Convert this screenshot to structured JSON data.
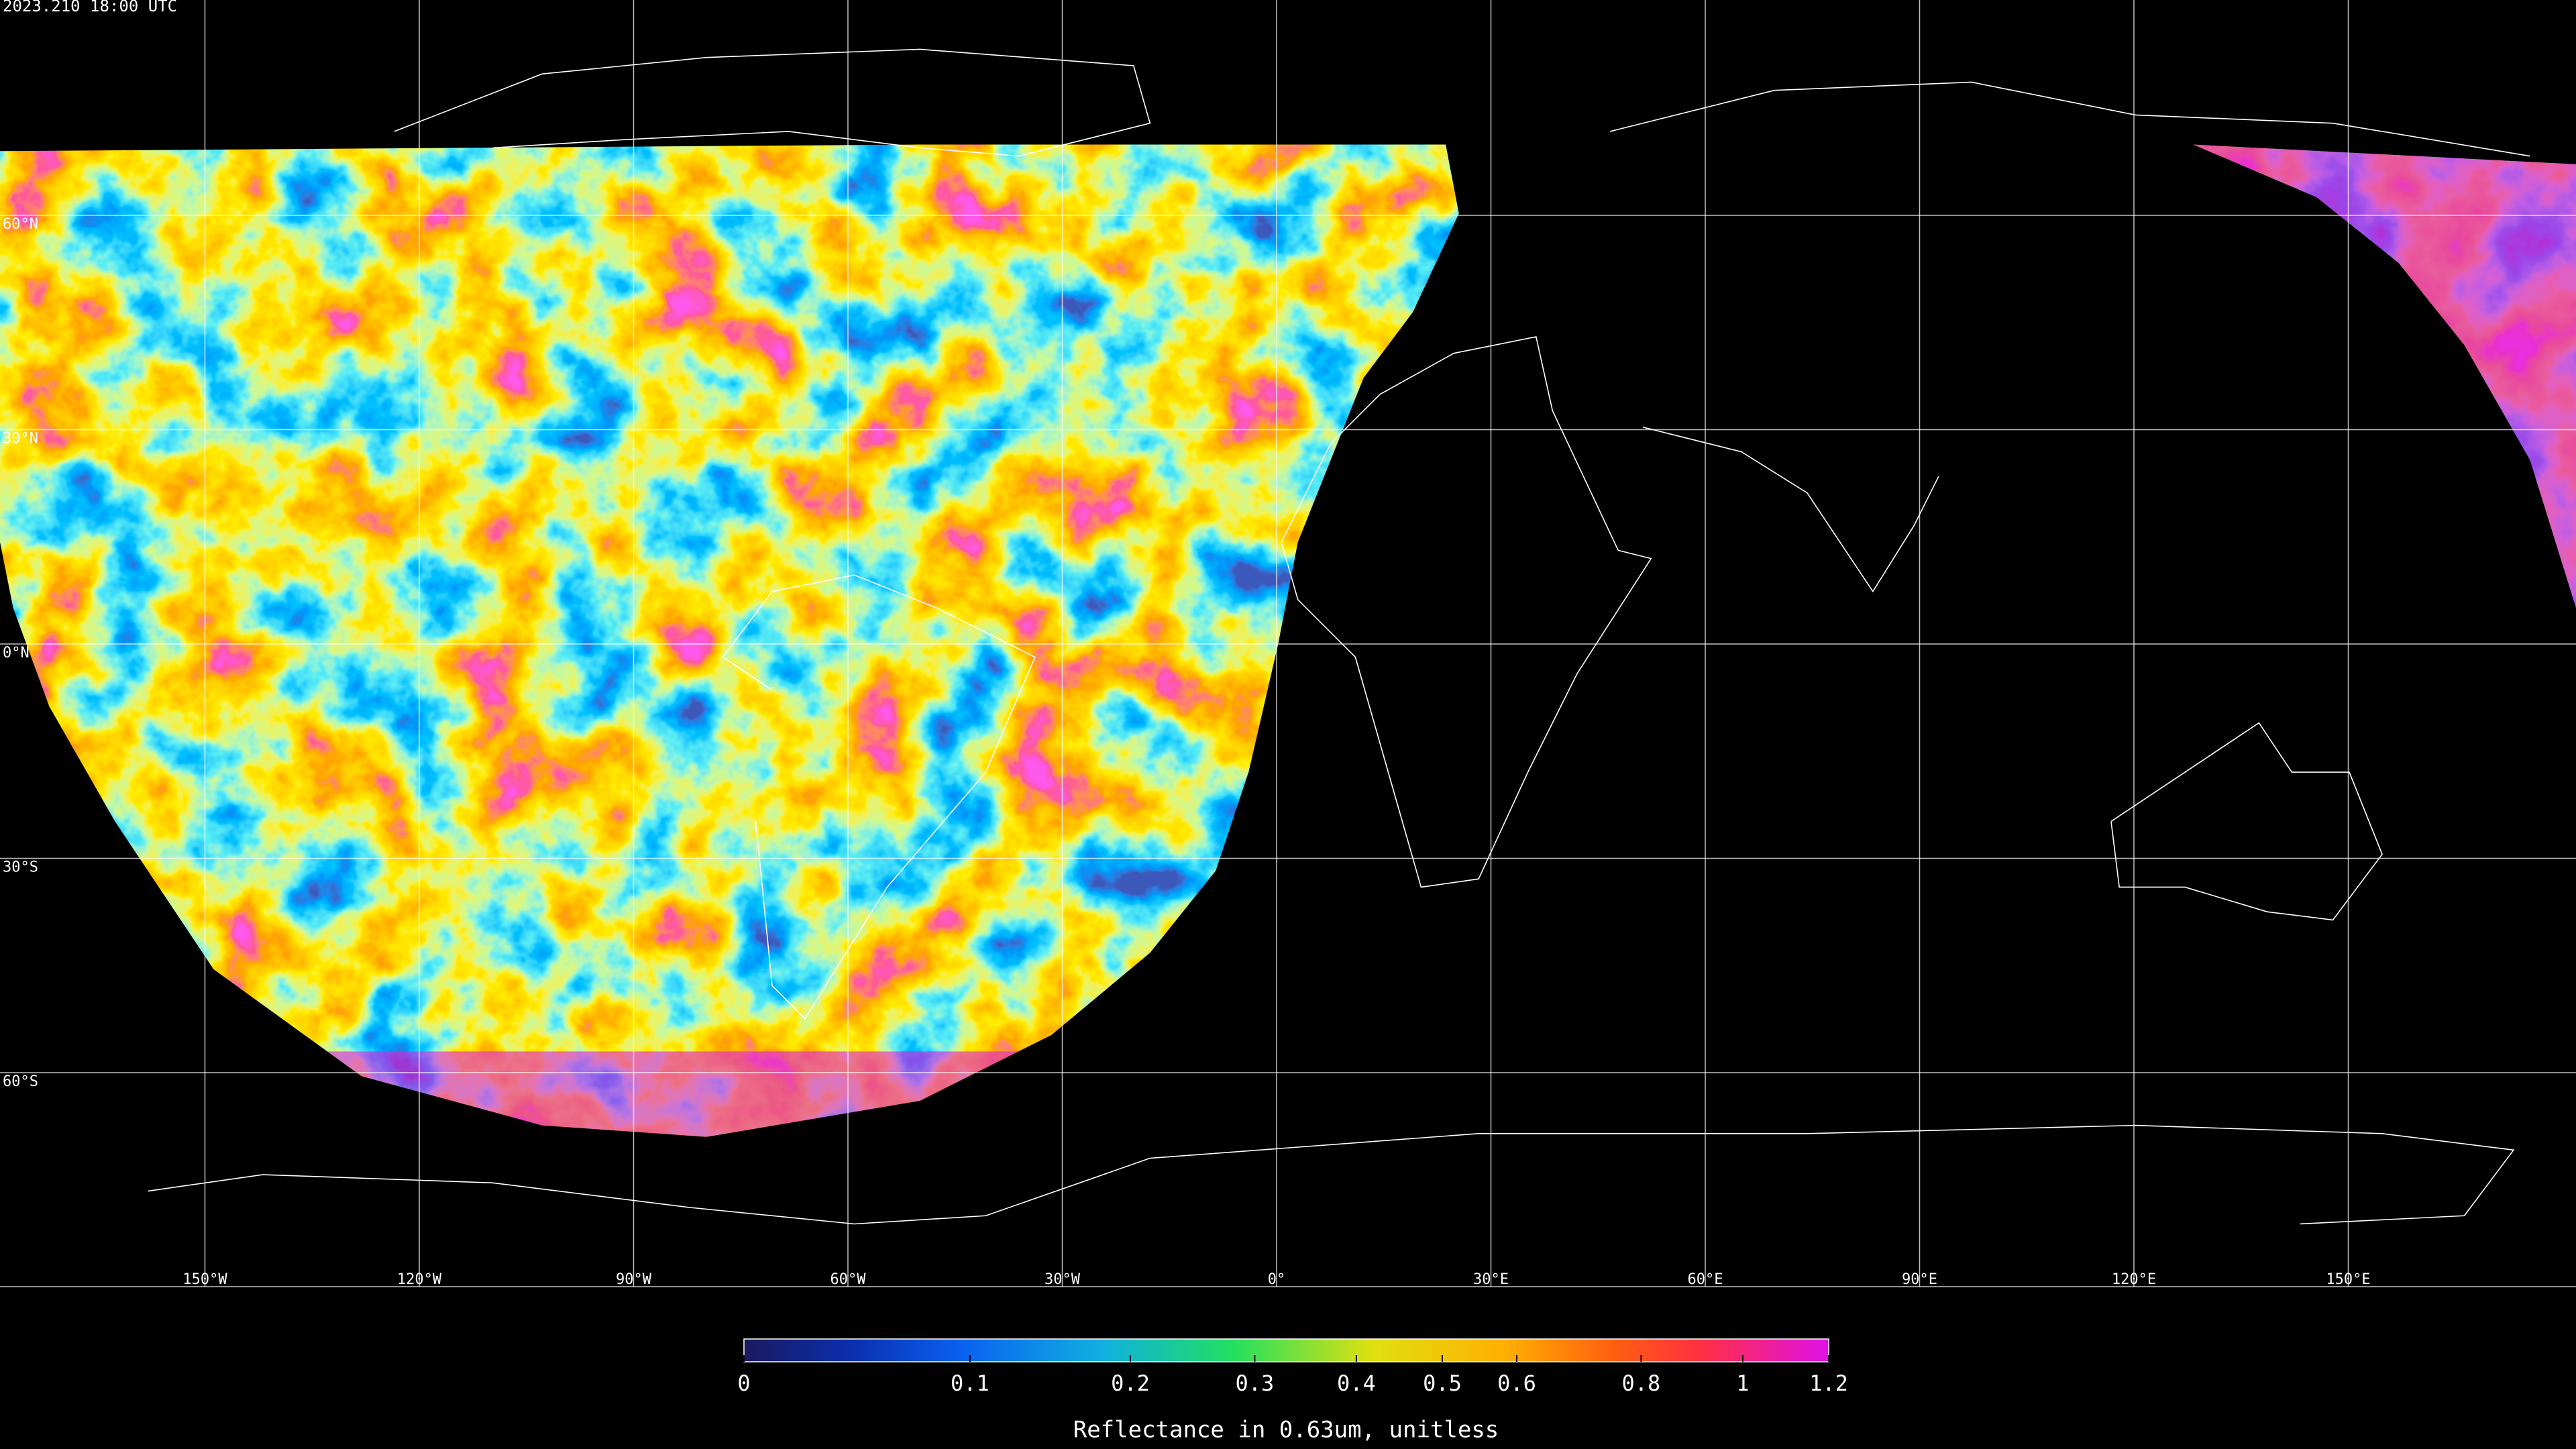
{
  "title": "2023.210 18:00 UTC",
  "map": {
    "latitudes": [
      {
        "value": 60,
        "label": "60°N"
      },
      {
        "value": 30,
        "label": "30°N"
      },
      {
        "value": 0,
        "label": "0°N"
      },
      {
        "value": -30,
        "label": "30°S"
      },
      {
        "value": -60,
        "label": "60°S"
      }
    ],
    "longitudes": [
      {
        "value": -150,
        "label": "150°W"
      },
      {
        "value": -120,
        "label": "120°W"
      },
      {
        "value": -90,
        "label": "90°W"
      },
      {
        "value": -60,
        "label": "60°W"
      },
      {
        "value": -30,
        "label": "30°W"
      },
      {
        "value": 0,
        "label": "0°"
      },
      {
        "value": 30,
        "label": "30°E"
      },
      {
        "value": 60,
        "label": "60°E"
      },
      {
        "value": 90,
        "label": "90°E"
      },
      {
        "value": 120,
        "label": "120°E"
      },
      {
        "value": 150,
        "label": "150°E"
      }
    ]
  },
  "colorbar": {
    "label": "Reflectance in 0.63um, unitless",
    "lim": [
      0,
      1.2
    ],
    "ticks": [
      0,
      0.1,
      0.2,
      0.3,
      0.4,
      0.5,
      0.6,
      0.8,
      1,
      1.2
    ]
  }
}
